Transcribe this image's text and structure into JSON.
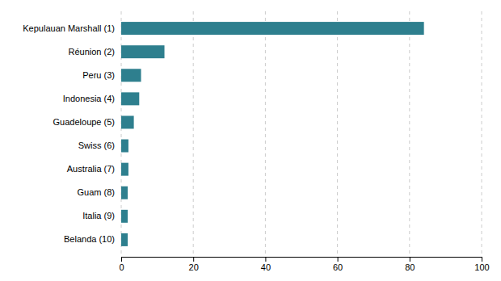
{
  "chart_data": {
    "type": "bar",
    "orientation": "horizontal",
    "categories": [
      "Kepulauan Marshall (1)",
      "Réunion (2)",
      "Peru (3)",
      "Indonesia (4)",
      "Guadeloupe (5)",
      "Swiss (6)",
      "Australia (7)",
      "Guam (8)",
      "Italia (9)",
      "Belanda (10)"
    ],
    "values": [
      84,
      12,
      5.5,
      5.0,
      3.5,
      2.0,
      2.0,
      1.8,
      1.8,
      1.8
    ],
    "color": "#2e7f8e",
    "xlim": [
      0,
      100
    ],
    "xticks": [
      0,
      20,
      40,
      60,
      80,
      100
    ],
    "grid": true
  }
}
